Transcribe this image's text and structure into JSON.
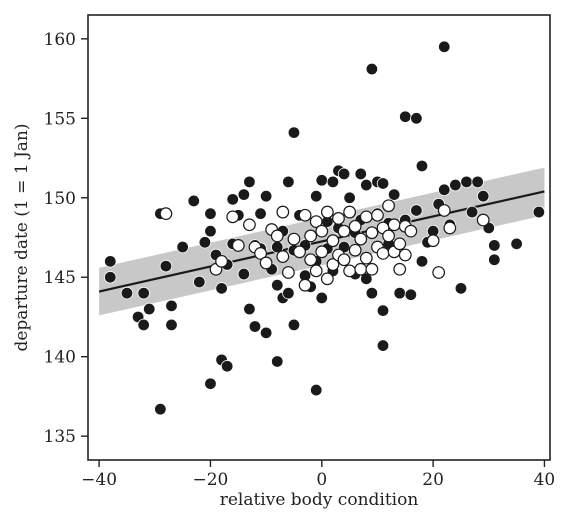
{
  "chart_data": {
    "type": "scatter",
    "xlabel": "relative body condition",
    "ylabel": "departure date (1 = 1 Jan)",
    "xlim": [
      -42,
      41
    ],
    "ylim": [
      133.5,
      161.5
    ],
    "xticks": [
      -40,
      -20,
      0,
      20,
      40
    ],
    "yticks": [
      135,
      140,
      145,
      150,
      155,
      160
    ],
    "grid": false,
    "colors": {
      "filled": "#1a1a1a",
      "open_fill": "#ffffff",
      "open_stroke": "#1a1a1a",
      "line": "#1a1a1a",
      "band": "#c8c8c8"
    },
    "regression": {
      "x": [
        -40,
        40
      ],
      "y": [
        144.1,
        150.4
      ]
    },
    "confidence_band": {
      "x": [
        -40,
        40
      ],
      "lower": [
        142.6,
        148.9
      ],
      "upper": [
        145.6,
        151.9
      ]
    },
    "series": [
      {
        "style": "filled",
        "points": [
          [
            -38,
            146
          ],
          [
            -38,
            145
          ],
          [
            -35,
            144
          ],
          [
            -33,
            142.5
          ],
          [
            -32,
            142
          ],
          [
            -32,
            144
          ],
          [
            -31,
            143
          ],
          [
            -29,
            136.7
          ],
          [
            -29,
            149
          ],
          [
            -28,
            145.7
          ],
          [
            -27,
            143.2
          ],
          [
            -27,
            142
          ],
          [
            -25,
            146.9
          ],
          [
            -23,
            149.8
          ],
          [
            -22,
            144.7
          ],
          [
            -21,
            147.2
          ],
          [
            -20,
            147.9
          ],
          [
            -20,
            138.3
          ],
          [
            -20,
            149
          ],
          [
            -19,
            146.4
          ],
          [
            -18,
            139.8
          ],
          [
            -18,
            144.3
          ],
          [
            -17,
            139.4
          ],
          [
            -17,
            145.8
          ],
          [
            -16,
            147.1
          ],
          [
            -16,
            149.9
          ],
          [
            -15,
            148.9
          ],
          [
            -14,
            145.2
          ],
          [
            -14,
            150.2
          ],
          [
            -13,
            143
          ],
          [
            -13,
            151
          ],
          [
            -12,
            141.9
          ],
          [
            -12,
            147
          ],
          [
            -11,
            146.8
          ],
          [
            -11,
            149
          ],
          [
            -10,
            141.5
          ],
          [
            -10,
            150.1
          ],
          [
            -9,
            145.5
          ],
          [
            -9,
            148
          ],
          [
            -8,
            139.7
          ],
          [
            -8,
            144.5
          ],
          [
            -8,
            146.9
          ],
          [
            -7,
            143.7
          ],
          [
            -7,
            147.9
          ],
          [
            -6,
            144
          ],
          [
            -6,
            151
          ],
          [
            -5,
            154.1
          ],
          [
            -5,
            142
          ],
          [
            -5,
            146.7
          ],
          [
            -4,
            148.9
          ],
          [
            -3,
            147
          ],
          [
            -3,
            145.1
          ],
          [
            -2,
            144.4
          ],
          [
            -1,
            137.9
          ],
          [
            -1,
            150.1
          ],
          [
            -1,
            146
          ],
          [
            0,
            151.1
          ],
          [
            0,
            143.7
          ],
          [
            1,
            148.5
          ],
          [
            1,
            146.8
          ],
          [
            2,
            151
          ],
          [
            2,
            145.4
          ],
          [
            3,
            151.7
          ],
          [
            3,
            148.1
          ],
          [
            4,
            151.5
          ],
          [
            4,
            146.9
          ],
          [
            5,
            150
          ],
          [
            6,
            147.8
          ],
          [
            6,
            145.2
          ],
          [
            7,
            151.5
          ],
          [
            7,
            148.6
          ],
          [
            8,
            150.8
          ],
          [
            8,
            144.9
          ],
          [
            9,
            158.1
          ],
          [
            9,
            145.5
          ],
          [
            9,
            144
          ],
          [
            10,
            151
          ],
          [
            10,
            149
          ],
          [
            11,
            140.7
          ],
          [
            11,
            142.9
          ],
          [
            11,
            150.9
          ],
          [
            12,
            148.4
          ],
          [
            12,
            147.1
          ],
          [
            13,
            150.2
          ],
          [
            14,
            144
          ],
          [
            15,
            155.1
          ],
          [
            15,
            148.6
          ],
          [
            16,
            143.9
          ],
          [
            17,
            155
          ],
          [
            17,
            149.2
          ],
          [
            18,
            152
          ],
          [
            18,
            146
          ],
          [
            19,
            147.2
          ],
          [
            20,
            147.9
          ],
          [
            21,
            149.6
          ],
          [
            22,
            159.5
          ],
          [
            22,
            150.5
          ],
          [
            23,
            148.3
          ],
          [
            24,
            150.8
          ],
          [
            25,
            144.3
          ],
          [
            26,
            151
          ],
          [
            27,
            149.1
          ],
          [
            28,
            151
          ],
          [
            29,
            150.1
          ],
          [
            30,
            148.1
          ],
          [
            31,
            147
          ],
          [
            31,
            146.1
          ],
          [
            35,
            147.1
          ],
          [
            39,
            149.1
          ]
        ]
      },
      {
        "style": "open",
        "points": [
          [
            -28,
            149
          ],
          [
            -19,
            145.5
          ],
          [
            -18,
            146
          ],
          [
            -16,
            148.8
          ],
          [
            -15,
            147
          ],
          [
            -13,
            148.3
          ],
          [
            -12,
            146.9
          ],
          [
            -11,
            146.5
          ],
          [
            -10,
            145.9
          ],
          [
            -9,
            148
          ],
          [
            -8,
            147.6
          ],
          [
            -7,
            146.3
          ],
          [
            -7,
            149.1
          ],
          [
            -6,
            145.3
          ],
          [
            -5,
            147.4
          ],
          [
            -4,
            146.6
          ],
          [
            -3,
            148.9
          ],
          [
            -3,
            144.5
          ],
          [
            -2,
            147.6
          ],
          [
            -2,
            146.1
          ],
          [
            -1,
            148.5
          ],
          [
            -1,
            145.4
          ],
          [
            0,
            147.9
          ],
          [
            0,
            146.6
          ],
          [
            1,
            149.1
          ],
          [
            1,
            144.9
          ],
          [
            2,
            147.3
          ],
          [
            2,
            145.8
          ],
          [
            3,
            148.7
          ],
          [
            3,
            146.4
          ],
          [
            4,
            147.9
          ],
          [
            4,
            146.1
          ],
          [
            5,
            149.1
          ],
          [
            5,
            145.4
          ],
          [
            6,
            148.2
          ],
          [
            6,
            146.7
          ],
          [
            7,
            147.4
          ],
          [
            7,
            145.5
          ],
          [
            8,
            148.8
          ],
          [
            8,
            146.2
          ],
          [
            9,
            147.8
          ],
          [
            9,
            145.5
          ],
          [
            10,
            148.9
          ],
          [
            10,
            146.9
          ],
          [
            11,
            148.1
          ],
          [
            11,
            146.5
          ],
          [
            12,
            147.6
          ],
          [
            12,
            149.5
          ],
          [
            13,
            148.3
          ],
          [
            13,
            146.6
          ],
          [
            14,
            147.1
          ],
          [
            14,
            145.5
          ],
          [
            15,
            148.2
          ],
          [
            15,
            146.4
          ],
          [
            16,
            147.9
          ],
          [
            20,
            147.3
          ],
          [
            21,
            145.3
          ],
          [
            22,
            149.2
          ],
          [
            23,
            148.1
          ],
          [
            29,
            148.6
          ]
        ]
      }
    ]
  }
}
